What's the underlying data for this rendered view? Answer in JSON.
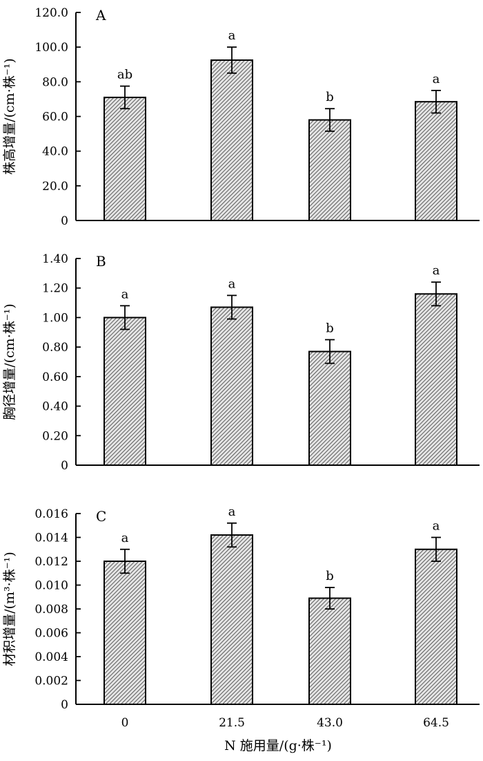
{
  "chart_data": [
    {
      "type": "bar",
      "panel_label": "A",
      "ylabel": "株高增量/(cm·株⁻¹)",
      "categories": [
        "0",
        "21.5",
        "43.0",
        "64.5"
      ],
      "values": [
        71.0,
        92.5,
        58.0,
        68.5
      ],
      "error": [
        6.5,
        7.5,
        6.5,
        6.5
      ],
      "significance": [
        "ab",
        "a",
        "b",
        "a"
      ],
      "ylim": [
        0,
        120
      ],
      "yticks": [
        0,
        20,
        40,
        60,
        80,
        100,
        120
      ],
      "ytick_labels": [
        "0",
        "20.0",
        "40.0",
        "60.0",
        "80.0",
        "100.0",
        "120.0"
      ],
      "bar_fill": "hatched grey",
      "grid": false
    },
    {
      "type": "bar",
      "panel_label": "B",
      "ylabel": "胸径增量/(cm·株⁻¹)",
      "categories": [
        "0",
        "21.5",
        "43.0",
        "64.5"
      ],
      "values": [
        1.0,
        1.07,
        0.77,
        1.16
      ],
      "error": [
        0.08,
        0.08,
        0.08,
        0.08
      ],
      "significance": [
        "a",
        "a",
        "b",
        "a"
      ],
      "ylim": [
        0,
        1.4
      ],
      "yticks": [
        0,
        0.2,
        0.4,
        0.6,
        0.8,
        1.0,
        1.2,
        1.4
      ],
      "ytick_labels": [
        "0",
        "0.20",
        "0.40",
        "0.60",
        "0.80",
        "1.00",
        "1.20",
        "1.40"
      ],
      "bar_fill": "hatched grey",
      "grid": false
    },
    {
      "type": "bar",
      "panel_label": "C",
      "ylabel": "材积增量/(m³·株⁻¹)",
      "xlabel": "N 施用量/(g·株⁻¹)",
      "categories": [
        "0",
        "21.5",
        "43.0",
        "64.5"
      ],
      "values": [
        0.012,
        0.0142,
        0.0089,
        0.013
      ],
      "error": [
        0.001,
        0.001,
        0.0009,
        0.001
      ],
      "significance": [
        "a",
        "a",
        "b",
        "a"
      ],
      "ylim": [
        0,
        0.016
      ],
      "yticks": [
        0,
        0.002,
        0.004,
        0.006,
        0.008,
        0.01,
        0.012,
        0.014,
        0.016
      ],
      "ytick_labels": [
        "0",
        "0.002",
        "0.004",
        "0.006",
        "0.008",
        "0.010",
        "0.012",
        "0.014",
        "0.016"
      ],
      "bar_fill": "hatched grey",
      "grid": false
    }
  ]
}
